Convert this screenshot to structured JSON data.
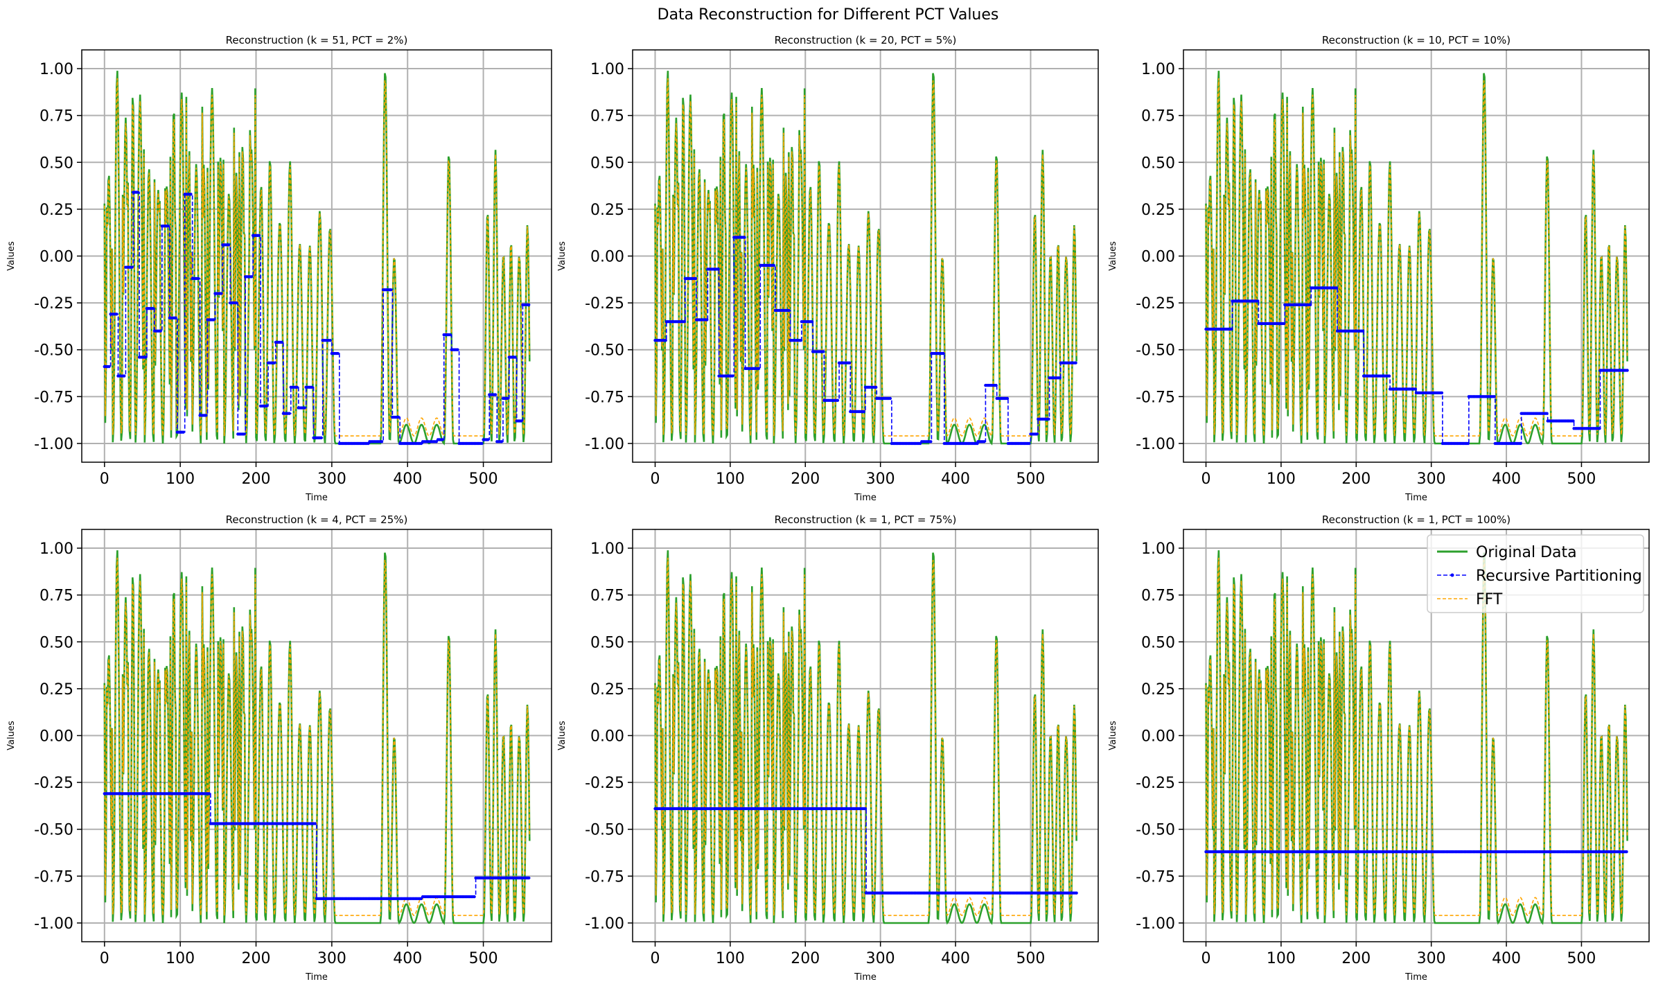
{
  "suptitle": "Data Reconstruction for Different PCT Values",
  "colors": {
    "original": "#2ca02c",
    "recursive": "#0000ff",
    "fft": "#ffa500",
    "grid": "#b0b0b0"
  },
  "legend": {
    "placement": "upper-right of last panel",
    "entries": [
      "Original Data",
      "Recursive Partitioning",
      "FFT"
    ]
  },
  "chart_data": [
    {
      "type": "line",
      "title": "Reconstruction (k = 51, PCT = 2%)",
      "xlabel": "Time",
      "ylabel": "Values",
      "xlim": [
        -30,
        590
      ],
      "ylim": [
        -1.1,
        1.1
      ],
      "xticks": [
        0,
        100,
        200,
        300,
        400,
        500
      ],
      "yticks": [
        -1.0,
        -0.75,
        -0.5,
        -0.25,
        0.0,
        0.25,
        0.5,
        0.75,
        1.0
      ],
      "grid": true,
      "series": [
        {
          "name": "Original Data",
          "values": "oscillating signal, n=562, range [-1, 1]"
        },
        {
          "name": "Recursive Partitioning",
          "steps": [
            [
              0,
              -0.59
            ],
            [
              8,
              -0.31
            ],
            [
              18,
              -0.64
            ],
            [
              28,
              -0.06
            ],
            [
              38,
              0.34
            ],
            [
              46,
              -0.54
            ],
            [
              56,
              -0.28
            ],
            [
              66,
              -0.4
            ],
            [
              76,
              0.16
            ],
            [
              86,
              -0.33
            ],
            [
              96,
              -0.94
            ],
            [
              106,
              0.33
            ],
            [
              116,
              -0.12
            ],
            [
              126,
              -0.85
            ],
            [
              136,
              -0.34
            ],
            [
              146,
              -0.2
            ],
            [
              156,
              0.06
            ],
            [
              166,
              -0.25
            ],
            [
              176,
              -0.95
            ],
            [
              186,
              -0.11
            ],
            [
              196,
              0.11
            ],
            [
              206,
              -0.8
            ],
            [
              216,
              -0.57
            ],
            [
              226,
              -0.46
            ],
            [
              236,
              -0.84
            ],
            [
              246,
              -0.7
            ],
            [
              256,
              -0.81
            ],
            [
              266,
              -0.7
            ],
            [
              276,
              -0.97
            ],
            [
              288,
              -0.45
            ],
            [
              300,
              -0.52
            ],
            [
              310,
              -1.0
            ],
            [
              330,
              -1.0
            ],
            [
              350,
              -0.99
            ],
            [
              368,
              -0.18
            ],
            [
              380,
              -0.86
            ],
            [
              390,
              -1.0
            ],
            [
              420,
              -0.99
            ],
            [
              440,
              -0.98
            ],
            [
              448,
              -0.42
            ],
            [
              458,
              -0.5
            ],
            [
              468,
              -1.0
            ],
            [
              500,
              -0.98
            ],
            [
              508,
              -0.74
            ],
            [
              518,
              -0.99
            ],
            [
              526,
              -0.76
            ],
            [
              534,
              -0.54
            ],
            [
              544,
              -0.88
            ],
            [
              552,
              -0.26
            ],
            [
              562,
              -0.26
            ]
          ]
        },
        {
          "name": "FFT",
          "values": "follows original"
        }
      ]
    },
    {
      "type": "line",
      "title": "Reconstruction (k = 20, PCT = 5%)",
      "xlabel": "Time",
      "ylabel": "Values",
      "xlim": [
        -30,
        590
      ],
      "ylim": [
        -1.1,
        1.1
      ],
      "xticks": [
        0,
        100,
        200,
        300,
        400,
        500
      ],
      "yticks": [
        -1.0,
        -0.75,
        -0.5,
        -0.25,
        0.0,
        0.25,
        0.5,
        0.75,
        1.0
      ],
      "grid": true,
      "series": [
        {
          "name": "Original Data",
          "values": "oscillating signal, n=562, range [-1, 1]"
        },
        {
          "name": "Recursive Partitioning",
          "steps": [
            [
              0,
              -0.45
            ],
            [
              15,
              -0.35
            ],
            [
              40,
              -0.12
            ],
            [
              55,
              -0.34
            ],
            [
              70,
              -0.07
            ],
            [
              85,
              -0.64
            ],
            [
              105,
              0.1
            ],
            [
              120,
              -0.6
            ],
            [
              140,
              -0.05
            ],
            [
              160,
              -0.29
            ],
            [
              180,
              -0.45
            ],
            [
              195,
              -0.35
            ],
            [
              210,
              -0.51
            ],
            [
              225,
              -0.77
            ],
            [
              245,
              -0.57
            ],
            [
              260,
              -0.83
            ],
            [
              280,
              -0.7
            ],
            [
              295,
              -0.76
            ],
            [
              315,
              -1.0
            ],
            [
              335,
              -1.0
            ],
            [
              355,
              -0.99
            ],
            [
              368,
              -0.52
            ],
            [
              385,
              -1.0
            ],
            [
              415,
              -1.0
            ],
            [
              430,
              -0.99
            ],
            [
              440,
              -0.69
            ],
            [
              455,
              -0.76
            ],
            [
              470,
              -1.0
            ],
            [
              490,
              -1.0
            ],
            [
              500,
              -0.95
            ],
            [
              510,
              -0.87
            ],
            [
              525,
              -0.65
            ],
            [
              540,
              -0.57
            ],
            [
              562,
              -0.57
            ]
          ]
        },
        {
          "name": "FFT",
          "values": "follows original"
        }
      ]
    },
    {
      "type": "line",
      "title": "Reconstruction (k = 10, PCT = 10%)",
      "xlabel": "Time",
      "ylabel": "Values",
      "xlim": [
        -30,
        590
      ],
      "ylim": [
        -1.1,
        1.1
      ],
      "xticks": [
        0,
        100,
        200,
        300,
        400,
        500
      ],
      "yticks": [
        -1.0,
        -0.75,
        -0.5,
        -0.25,
        0.0,
        0.25,
        0.5,
        0.75,
        1.0
      ],
      "grid": true,
      "series": [
        {
          "name": "Original Data",
          "values": "oscillating signal, n=562, range [-1, 1]"
        },
        {
          "name": "Recursive Partitioning",
          "steps": [
            [
              0,
              -0.39
            ],
            [
              35,
              -0.24
            ],
            [
              70,
              -0.36
            ],
            [
              105,
              -0.26
            ],
            [
              140,
              -0.17
            ],
            [
              175,
              -0.4
            ],
            [
              210,
              -0.64
            ],
            [
              245,
              -0.71
            ],
            [
              280,
              -0.73
            ],
            [
              315,
              -1.0
            ],
            [
              350,
              -0.75
            ],
            [
              385,
              -1.0
            ],
            [
              420,
              -0.84
            ],
            [
              455,
              -0.88
            ],
            [
              490,
              -0.92
            ],
            [
              525,
              -0.61
            ],
            [
              562,
              -0.61
            ]
          ]
        },
        {
          "name": "FFT",
          "values": "follows original"
        }
      ]
    },
    {
      "type": "line",
      "title": "Reconstruction (k = 4, PCT = 25%)",
      "xlabel": "Time",
      "ylabel": "Values",
      "xlim": [
        -30,
        590
      ],
      "ylim": [
        -1.1,
        1.1
      ],
      "xticks": [
        0,
        100,
        200,
        300,
        400,
        500
      ],
      "yticks": [
        -1.0,
        -0.75,
        -0.5,
        -0.25,
        0.0,
        0.25,
        0.5,
        0.75,
        1.0
      ],
      "grid": true,
      "series": [
        {
          "name": "Original Data",
          "values": "oscillating signal, n=562, range [-1, 1]"
        },
        {
          "name": "Recursive Partitioning",
          "steps": [
            [
              0,
              -0.31
            ],
            [
              140,
              -0.47
            ],
            [
              280,
              -0.87
            ],
            [
              420,
              -0.86
            ],
            [
              490,
              -0.76
            ],
            [
              562,
              -0.76
            ]
          ]
        },
        {
          "name": "FFT",
          "values": "follows original"
        }
      ]
    },
    {
      "type": "line",
      "title": "Reconstruction (k = 1, PCT = 75%)",
      "xlabel": "Time",
      "ylabel": "Values",
      "xlim": [
        -30,
        590
      ],
      "ylim": [
        -1.1,
        1.1
      ],
      "xticks": [
        0,
        100,
        200,
        300,
        400,
        500
      ],
      "yticks": [
        -1.0,
        -0.75,
        -0.5,
        -0.25,
        0.0,
        0.25,
        0.5,
        0.75,
        1.0
      ],
      "grid": true,
      "series": [
        {
          "name": "Original Data",
          "values": "oscillating signal, n=562, range [-1, 1]"
        },
        {
          "name": "Recursive Partitioning",
          "steps": [
            [
              0,
              -0.39
            ],
            [
              281,
              -0.84
            ],
            [
              562,
              -0.84
            ]
          ]
        },
        {
          "name": "FFT",
          "values": "follows original"
        }
      ]
    },
    {
      "type": "line",
      "title": "Reconstruction (k = 1, PCT = 100%)",
      "xlabel": "Time",
      "ylabel": "Values",
      "xlim": [
        -30,
        590
      ],
      "ylim": [
        -1.1,
        1.1
      ],
      "xticks": [
        0,
        100,
        200,
        300,
        400,
        500
      ],
      "yticks": [
        -1.0,
        -0.75,
        -0.5,
        -0.25,
        0.0,
        0.25,
        0.5,
        0.75,
        1.0
      ],
      "grid": true,
      "series": [
        {
          "name": "Original Data",
          "values": "oscillating signal, n=562, range [-1, 1]"
        },
        {
          "name": "Recursive Partitioning",
          "steps": [
            [
              0,
              -0.62
            ],
            [
              562,
              -0.62
            ]
          ]
        },
        {
          "name": "FFT",
          "values": "follows original"
        }
      ]
    }
  ]
}
